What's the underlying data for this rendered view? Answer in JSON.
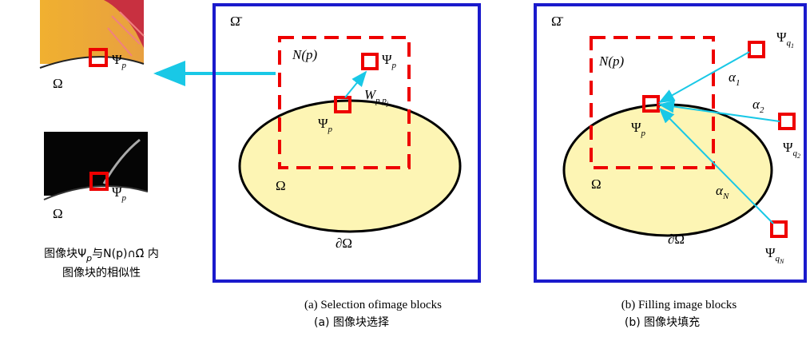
{
  "left": {
    "thumb_top": {
      "patch": {
        "base": "Ψ",
        "sub": "p"
      },
      "region": "Ω"
    },
    "thumb_bottom": {
      "patch": {
        "base": "Ψ",
        "sub": "p"
      },
      "region": "Ω"
    },
    "caption": {
      "line1_before": "图像块Ψ",
      "line1_sub": "p",
      "line1_after": "与N(p)∩Ω̄ 内",
      "line2": "图像块的相似性"
    }
  },
  "panel_a": {
    "closure": "Ω̄",
    "neighborhood": "N(p)",
    "patch_top": {
      "base": "Ψ",
      "sub": "p"
    },
    "patch_center": {
      "base": "Ψ",
      "sub": "p"
    },
    "weight": {
      "base": "W",
      "sub": "p,p",
      "subsub": "j"
    },
    "region": "Ω",
    "boundary": "∂Ω",
    "caption_en": "(a) Selection ofimage blocks",
    "caption_zh": "(a)  图像块选择"
  },
  "panel_b": {
    "closure": "Ω̄",
    "neighborhood": "N(p)",
    "patch_center": {
      "base": "Ψ",
      "sub": "p"
    },
    "region": "Ω",
    "boundary": "∂Ω",
    "alphas": [
      {
        "base": "α",
        "sub": "1"
      },
      {
        "base": "α",
        "sub": "2"
      },
      {
        "base": "α",
        "sub": "N"
      }
    ],
    "sources": [
      {
        "base": "Ψ",
        "sub": "q",
        "subsub": "1"
      },
      {
        "base": "Ψ",
        "sub": "q",
        "subsub": "2"
      },
      {
        "base": "Ψ",
        "sub": "q",
        "subsub": "N"
      }
    ],
    "caption_en": "(b) Filling image blocks",
    "caption_zh": "(b)  图像块填充"
  }
}
